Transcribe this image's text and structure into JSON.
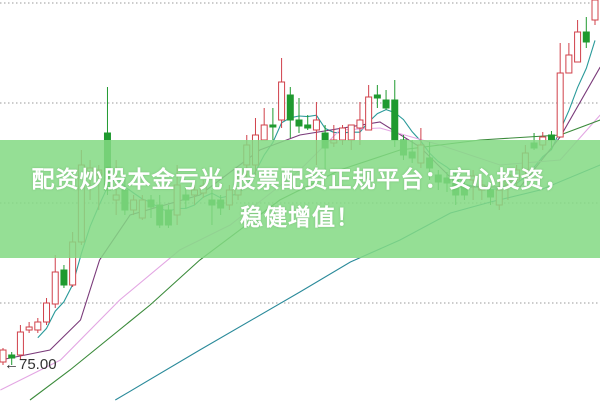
{
  "banner": {
    "line1": "配资炒股本金亏光 股票配资正规平台：安心投资，",
    "line2": "稳健增值！",
    "color": "#84da84"
  },
  "chart_data": {
    "type": "candlestick",
    "title": "",
    "grid": true,
    "up_color": "#d0404a",
    "down_color": "#1f9a2f",
    "annotation": {
      "text": "←75.00",
      "value": 75.0,
      "index": 0
    },
    "ohlc": [
      [
        75.5,
        76.9,
        75.2,
        76.7
      ],
      [
        76.2,
        76.5,
        75.2,
        75.9
      ],
      [
        76.2,
        79.2,
        75.7,
        78.5
      ],
      [
        78.7,
        79.5,
        78.4,
        79.0
      ],
      [
        78.7,
        79.9,
        78.4,
        79.5
      ],
      [
        79.5,
        81.9,
        79.2,
        81.4
      ],
      [
        81.3,
        86.2,
        80.9,
        84.5
      ],
      [
        84.7,
        85.2,
        82.9,
        83.2
      ],
      [
        83.2,
        88.5,
        83.0,
        87.5
      ],
      [
        87.5,
        96.7,
        87.2,
        95.2
      ],
      [
        94.5,
        95.7,
        91.7,
        94.9
      ],
      [
        94.2,
        95.2,
        90.7,
        94.7
      ],
      [
        98.4,
        103.0,
        92.2,
        92.7
      ],
      [
        91.7,
        95.7,
        90.2,
        92.2
      ],
      [
        92.7,
        93.9,
        90.2,
        90.7
      ],
      [
        90.7,
        92.2,
        90.2,
        91.7
      ],
      [
        89.9,
        92.2,
        89.7,
        91.7
      ],
      [
        91.7,
        92.2,
        89.9,
        91.0
      ],
      [
        91.2,
        92.2,
        88.9,
        89.2
      ],
      [
        90.7,
        91.2,
        88.9,
        89.2
      ],
      [
        90.2,
        95.2,
        89.2,
        93.2
      ],
      [
        92.2,
        93.0,
        90.9,
        91.7
      ],
      [
        92.2,
        93.2,
        91.2,
        92.7
      ],
      [
        92.4,
        93.7,
        91.9,
        93.1
      ],
      [
        91.7,
        92.7,
        89.2,
        91.2
      ],
      [
        91.7,
        92.2,
        90.2,
        90.9
      ],
      [
        91.2,
        93.2,
        90.7,
        92.7
      ],
      [
        92.2,
        94.2,
        91.7,
        93.7
      ],
      [
        95.2,
        98.2,
        93.7,
        97.2
      ],
      [
        95.2,
        99.9,
        94.2,
        98.2
      ],
      [
        97.7,
        100.9,
        97.7,
        99.2
      ],
      [
        99.2,
        100.9,
        97.7,
        99.0
      ],
      [
        99.7,
        105.9,
        98.9,
        103.5
      ],
      [
        102.2,
        103.0,
        97.9,
        99.7
      ],
      [
        99.7,
        101.9,
        98.4,
        99.1
      ],
      [
        99.2,
        100.2,
        98.7,
        98.9
      ],
      [
        98.7,
        101.5,
        95.2,
        99.7
      ],
      [
        98.4,
        99.2,
        94.7,
        96.9
      ],
      [
        97.4,
        99.2,
        97.0,
        97.7
      ],
      [
        97.7,
        99.2,
        97.2,
        98.9
      ],
      [
        97.7,
        99.2,
        96.7,
        99.2
      ],
      [
        98.9,
        101.5,
        97.2,
        99.7
      ],
      [
        98.7,
        103.2,
        98.7,
        102.0
      ],
      [
        102.2,
        103.2,
        100.9,
        101.9
      ],
      [
        101.7,
        102.7,
        100.7,
        100.9
      ],
      [
        101.7,
        103.7,
        97.0,
        97.7
      ],
      [
        97.7,
        98.2,
        95.7,
        96.2
      ],
      [
        96.5,
        97.7,
        95.4,
        95.9
      ],
      [
        95.4,
        98.9,
        94.9,
        97.2
      ],
      [
        95.9,
        97.5,
        93.7,
        94.9
      ],
      [
        94.2,
        94.7,
        92.7,
        93.5
      ],
      [
        93.9,
        94.5,
        92.5,
        93.4
      ],
      [
        93.7,
        94.7,
        91.2,
        92.2
      ],
      [
        93.2,
        93.9,
        91.7,
        92.2
      ],
      [
        93.7,
        94.7,
        91.7,
        94.1
      ],
      [
        92.7,
        93.7,
        91.7,
        93.2
      ],
      [
        92.7,
        93.5,
        91.2,
        92.0
      ],
      [
        91.2,
        93.7,
        90.7,
        92.7
      ],
      [
        93.2,
        94.7,
        91.7,
        94.2
      ],
      [
        93.7,
        95.2,
        92.7,
        94.7
      ],
      [
        94.7,
        97.2,
        93.7,
        96.4
      ],
      [
        97.4,
        98.4,
        96.7,
        96.9
      ],
      [
        97.2,
        98.5,
        96.7,
        98.0
      ],
      [
        98.2,
        98.6,
        96.7,
        97.7
      ],
      [
        98.0,
        107.4,
        98.0,
        104.4
      ],
      [
        104.4,
        107.4,
        104.4,
        106.2
      ],
      [
        105.5,
        109.7,
        105.5,
        108.5
      ],
      [
        108.5,
        110.0,
        106.9,
        107.5
      ],
      [
        109.7,
        111.7,
        109.2,
        111.7
      ]
    ],
    "moving_averages": [
      {
        "color": "#2a9a9a",
        "period": 5
      },
      {
        "color": "#7a3a7a",
        "points": [
          [
            -0.3,
            75.7
          ],
          [
            5.4,
            76.7
          ],
          [
            8.9,
            79.7
          ],
          [
            11.1,
            85.7
          ],
          [
            14.6,
            90.2
          ],
          [
            22.6,
            92.2
          ],
          [
            29.5,
            96.7
          ],
          [
            34.1,
            98.2
          ],
          [
            43.3,
            99.5
          ],
          [
            47.9,
            97.0
          ],
          [
            52.5,
            93.0
          ],
          [
            59.4,
            93.0
          ],
          [
            64,
            98.0
          ],
          [
            68.6,
            105.0
          ]
        ]
      },
      {
        "color": "#e3a6e3",
        "points": [
          [
            -0.3,
            72.7
          ],
          [
            6.6,
            75.7
          ],
          [
            13.4,
            81.7
          ],
          [
            20.3,
            86.7
          ],
          [
            26.1,
            89.2
          ],
          [
            34.1,
            94.7
          ],
          [
            38.7,
            98.7
          ],
          [
            43.3,
            98.9
          ],
          [
            50.2,
            97.2
          ],
          [
            57.1,
            95.2
          ],
          [
            64,
            95.7
          ],
          [
            68.6,
            100.2
          ]
        ]
      },
      {
        "color": "#3a8a3a",
        "points": [
          [
            3.1,
            71.7
          ],
          [
            7.7,
            74.7
          ],
          [
            16.9,
            81.2
          ],
          [
            22.6,
            85.7
          ],
          [
            31.8,
            91.7
          ],
          [
            38.7,
            94.7
          ],
          [
            45.6,
            96.7
          ],
          [
            54.8,
            97.7
          ],
          [
            64,
            98.2
          ],
          [
            68.6,
            99.7
          ]
        ]
      },
      {
        "color": "#2a8a9a",
        "points": [
          [
            12.9,
            71.7
          ],
          [
            22.6,
            76.7
          ],
          [
            34.1,
            82.5
          ],
          [
            39.9,
            85.5
          ],
          [
            45.6,
            87.7
          ],
          [
            51.4,
            90.4
          ],
          [
            56,
            91.5
          ],
          [
            61.7,
            92.7
          ],
          [
            68.6,
            95.2
          ]
        ]
      }
    ]
  }
}
